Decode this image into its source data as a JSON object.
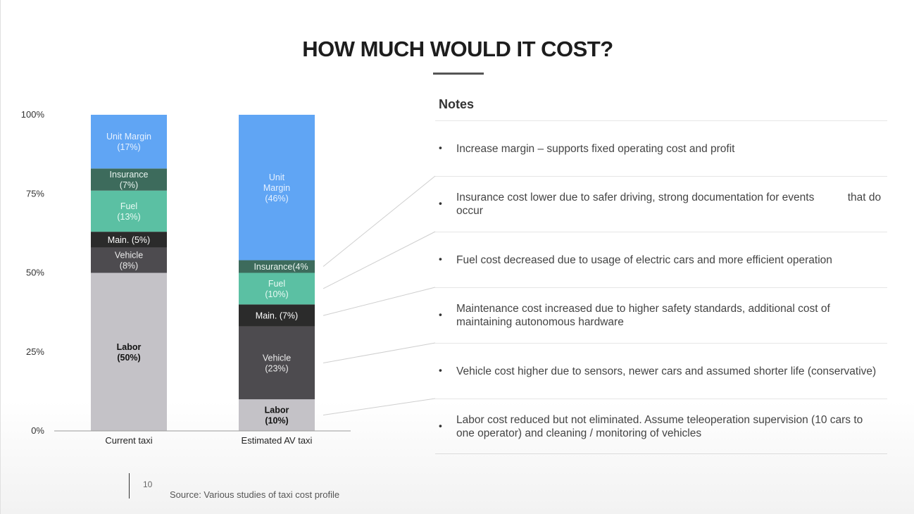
{
  "page": {
    "title": "HOW MUCH WOULD IT COST?",
    "notes_heading": "Notes",
    "page_number": "10",
    "source": "Source: Various studies of taxi cost profile"
  },
  "notes": [
    "Increase margin – supports fixed operating cost and profit",
    "Insurance cost lower due to safer driving, strong documentation for events           that do occur",
    "Fuel cost decreased due to usage of electric cars and more efficient operation",
    "Maintenance cost increased due to higher safety standards, additional cost of maintaining autonomous hardware",
    "Vehicle cost higher due to sensors, newer cars and assumed shorter life (conservative)",
    "Labor cost reduced but not eliminated. Assume teleoperation supervision (10 cars to one operator) and cleaning / monitoring of vehicles"
  ],
  "bullet_glyph": "•",
  "chart_data": {
    "type": "bar",
    "stacked": true,
    "categories": [
      "Current taxi",
      "Estimated AV taxi"
    ],
    "ylim": [
      0,
      100
    ],
    "yticks": [
      "0%",
      "25%",
      "50%",
      "75%",
      "100%"
    ],
    "ytick_values": [
      0,
      25,
      50,
      75,
      100
    ],
    "grid": false,
    "series": [
      {
        "key": "labor",
        "color": "#c4c2c7",
        "text_color": "#111111",
        "bold": true,
        "values": [
          50,
          10
        ],
        "labels": [
          [
            "Labor",
            "(50%)"
          ],
          [
            "Labor",
            "(10%)"
          ]
        ]
      },
      {
        "key": "vehicle",
        "color": "#4d4b4f",
        "text_color": "#ececec",
        "bold": false,
        "values": [
          8,
          23
        ],
        "labels": [
          [
            "Vehicle",
            "(8%)"
          ],
          [
            "Vehicle",
            "(23%)"
          ]
        ]
      },
      {
        "key": "maintenance",
        "color": "#2b2b2b",
        "text_color": "#ffffff",
        "bold": false,
        "values": [
          5,
          7
        ],
        "labels": [
          [
            "Main. (5%)"
          ],
          [
            "Main. (7%)"
          ]
        ]
      },
      {
        "key": "fuel",
        "color": "#5bc0a3",
        "text_color": "#e8faf3",
        "bold": false,
        "values": [
          13,
          10
        ],
        "labels": [
          [
            "Fuel",
            "(13%)"
          ],
          [
            "Fuel",
            "(10%)"
          ]
        ]
      },
      {
        "key": "insurance",
        "color": "#3d6b5c",
        "text_color": "#eaf5f0",
        "bold": false,
        "values": [
          7,
          4
        ],
        "labels": [
          [
            "Insurance",
            "(7%)"
          ],
          [
            "Insurance(4%"
          ]
        ]
      },
      {
        "key": "unit_margin",
        "color": "#60a5f4",
        "text_color": "#e6f1ff",
        "bold": false,
        "values": [
          17,
          46
        ],
        "labels": [
          [
            "Unit Margin",
            "(17%)"
          ],
          [
            "Unit",
            "Margin",
            "(46%)"
          ]
        ]
      }
    ]
  }
}
